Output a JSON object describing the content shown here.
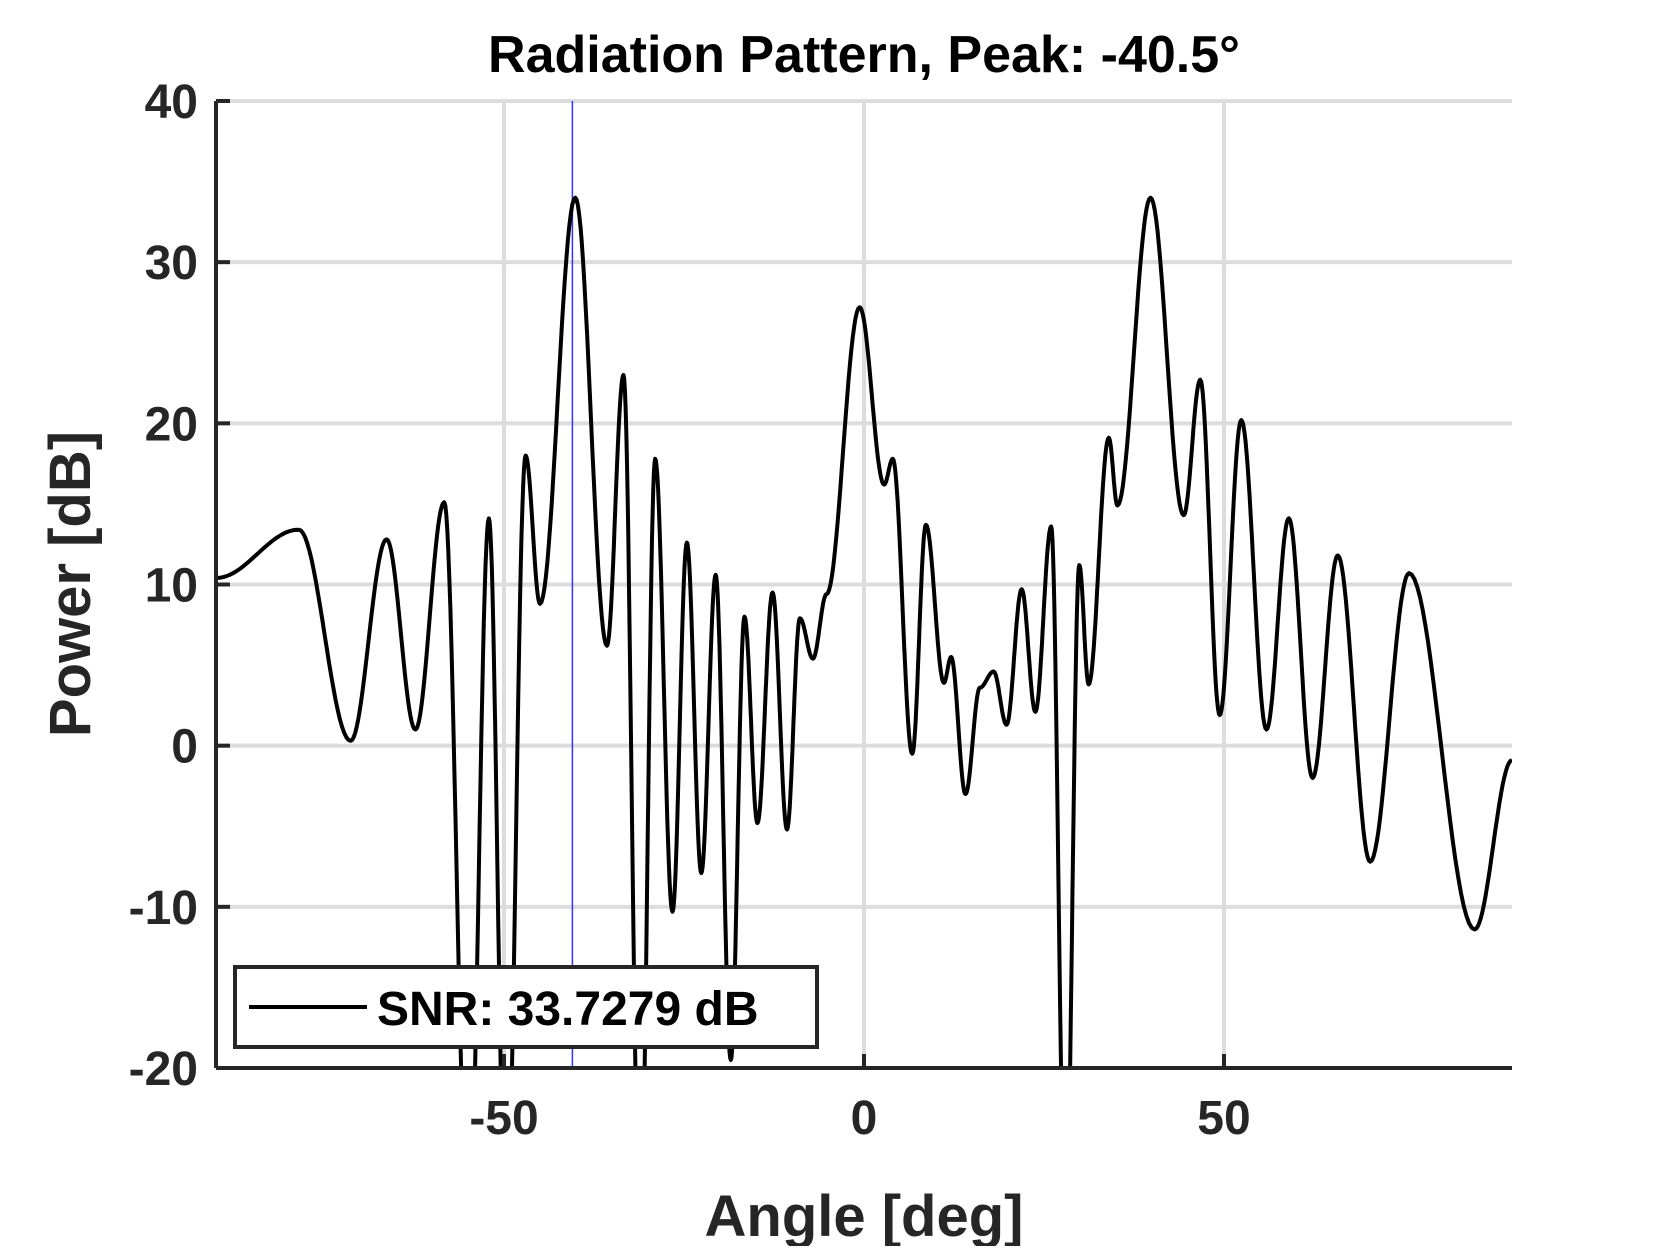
{
  "chart_data": {
    "type": "line",
    "title": "Radiation Pattern, Peak: -40.5°",
    "xlabel": "Angle [deg]",
    "ylabel": "Power [dB]",
    "xlim": [
      -90,
      90
    ],
    "ylim": [
      -20,
      40
    ],
    "xticks": [
      -50,
      0,
      50
    ],
    "yticks": [
      -20,
      -10,
      0,
      10,
      20,
      30,
      40
    ],
    "grid": true,
    "legend": {
      "placement": "bottom-left",
      "entries": [
        "SNR: 33.7279 dB"
      ]
    },
    "marker_line": {
      "x": -40.5,
      "color": "#3333ff"
    },
    "series": [
      {
        "name": "SNR: 33.7279 dB",
        "color": "#000000",
        "x": [
          -90,
          -78.5,
          -71.3,
          -66.3,
          -62.3,
          -58.3,
          -54.9,
          -52.1,
          -49.7,
          -47.0,
          -45.0,
          -40.1,
          -35.7,
          -33.4,
          -31.1,
          -29.0,
          -26.6,
          -24.6,
          -22.6,
          -20.6,
          -18.5,
          -16.6,
          -14.8,
          -12.7,
          -10.7,
          -8.9,
          -7.1,
          -5.2,
          -0.6,
          2.8,
          4.0,
          6.7,
          8.6,
          11.1,
          12.1,
          14.1,
          16.1,
          18.0,
          19.8,
          21.9,
          23.8,
          26.0,
          28.0,
          29.9,
          31.2,
          34.0,
          35.2,
          39.8,
          44.4,
          46.7,
          49.4,
          52.4,
          55.9,
          59.0,
          62.3,
          65.8,
          70.3,
          75.7,
          84.8,
          90
        ],
        "y": [
          10.4,
          13.4,
          0.3,
          12.8,
          1.0,
          15.1,
          -30,
          14.1,
          -30,
          18.0,
          8.8,
          34.0,
          6.2,
          23.0,
          -30,
          17.8,
          -10.3,
          12.6,
          -7.9,
          10.6,
          -19.5,
          8.0,
          -4.8,
          9.5,
          -5.2,
          7.9,
          5.4,
          9.4,
          27.2,
          16.2,
          17.8,
          -0.5,
          13.7,
          3.9,
          5.5,
          -3.0,
          3.6,
          4.6,
          1.3,
          9.7,
          2.1,
          13.6,
          -30,
          11.2,
          3.8,
          19.1,
          14.9,
          34.0,
          14.3,
          22.7,
          1.9,
          20.2,
          1.0,
          14.1,
          -2.0,
          11.8,
          -7.2,
          10.7,
          -11.4,
          -0.9
        ]
      }
    ]
  }
}
